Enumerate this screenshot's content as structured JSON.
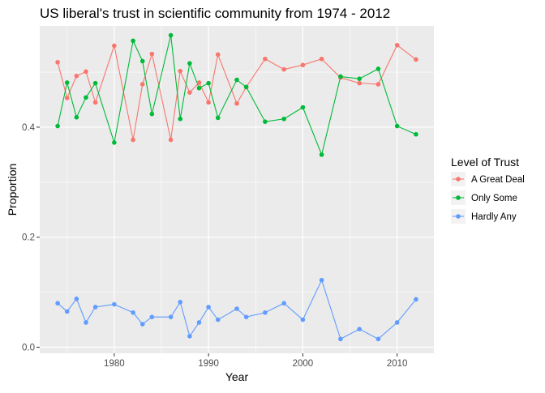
{
  "chart_data": {
    "type": "line",
    "title": "US liberal's trust in scientific community from 1974 - 2012",
    "xlabel": "Year",
    "ylabel": "Proportion",
    "xlim": [
      1972.1,
      2013.9
    ],
    "ylim": [
      -0.011,
      0.584
    ],
    "x_ticks": [
      1980,
      1990,
      2000,
      2010
    ],
    "y_ticks": [
      0.0,
      0.2,
      0.4
    ],
    "y_tick_labels": [
      "0.0",
      "0.2",
      "0.4"
    ],
    "grid": true,
    "panel_background": "#EBEBEB",
    "legend": {
      "title": "Level of Trust",
      "position": "right"
    },
    "x": [
      1974,
      1975,
      1976,
      1977,
      1978,
      1980,
      1982,
      1983,
      1984,
      1986,
      1987,
      1988,
      1989,
      1990,
      1991,
      1993,
      1994,
      1996,
      1998,
      2000,
      2002,
      2004,
      2006,
      2008,
      2010,
      2012
    ],
    "series": [
      {
        "name": "A Great Deal",
        "color": "#F8766D",
        "values": [
          0.518,
          0.453,
          0.493,
          0.501,
          0.445,
          0.548,
          0.377,
          0.478,
          0.533,
          0.377,
          0.502,
          0.463,
          0.481,
          0.445,
          0.532,
          0.443,
          0.473,
          0.524,
          0.505,
          0.513,
          0.524,
          0.49,
          0.48,
          0.478,
          0.549,
          0.523
        ]
      },
      {
        "name": "Only Some",
        "color": "#00BA38",
        "values": [
          0.402,
          0.481,
          0.418,
          0.454,
          0.48,
          0.372,
          0.557,
          0.52,
          0.424,
          0.567,
          0.415,
          0.516,
          0.471,
          0.48,
          0.417,
          0.486,
          0.473,
          0.41,
          0.415,
          0.436,
          0.35,
          0.492,
          0.488,
          0.506,
          0.402,
          0.387
        ]
      },
      {
        "name": "Hardly Any",
        "color": "#619CFF",
        "values": [
          0.08,
          0.065,
          0.088,
          0.045,
          0.073,
          0.078,
          0.063,
          0.042,
          0.055,
          0.055,
          0.082,
          0.02,
          0.045,
          0.073,
          0.05,
          0.07,
          0.055,
          0.063,
          0.08,
          0.05,
          0.122,
          0.015,
          0.033,
          0.015,
          0.045,
          0.087
        ]
      }
    ]
  }
}
